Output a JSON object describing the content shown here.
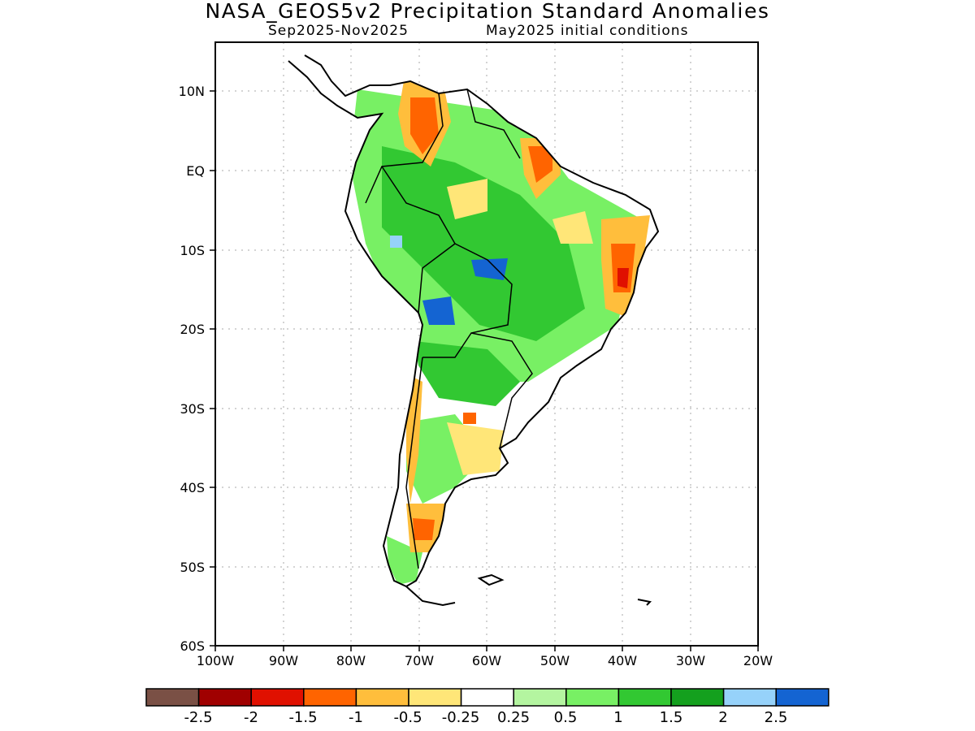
{
  "map": {
    "title": "NASA_GEOS5v2 Precipitation Standard Anomalies",
    "subtitle_left": "Sep2025-Nov2025",
    "subtitle_right": "May2025 initial conditions",
    "lat_labels": [
      "10N",
      "EQ",
      "10S",
      "20S",
      "30S",
      "40S",
      "50S",
      "60S"
    ],
    "lon_labels": [
      "100W",
      "90W",
      "80W",
      "70W",
      "60W",
      "50W",
      "40W",
      "30W",
      "20W"
    ],
    "colorbar": {
      "colors": [
        "#7a5045",
        "#a00000",
        "#e01000",
        "#ff6400",
        "#ffbe3c",
        "#ffe678",
        "#ffffff",
        "#b4f5a0",
        "#78f064",
        "#32c832",
        "#14a01e",
        "#96d2fa",
        "#1464d2"
      ],
      "labels": [
        "-2.5",
        "-2",
        "-1.5",
        "-1",
        "-0.5",
        "-0.25",
        "0.25",
        "0.5",
        "1",
        "1.5",
        "2",
        "2.5"
      ]
    }
  }
}
